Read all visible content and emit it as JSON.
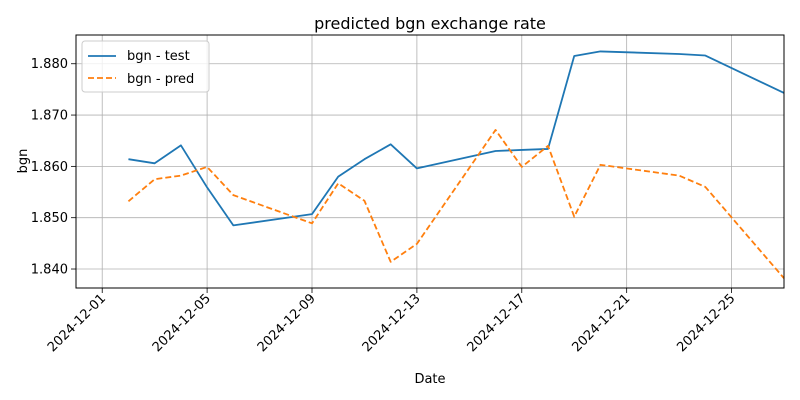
{
  "chart_data": {
    "type": "line",
    "title": "predicted bgn exchange rate",
    "xlabel": "Date",
    "ylabel": "bgn",
    "x_ticks": [
      "2024-12-01",
      "2024-12-05",
      "2024-12-09",
      "2024-12-13",
      "2024-12-17",
      "2024-12-21",
      "2024-12-25"
    ],
    "y_ticks": [
      "1.840",
      "1.850",
      "1.860",
      "1.870",
      "1.880"
    ],
    "xlim": [
      "2024-11-30",
      "2024-12-27"
    ],
    "ylim": [
      1.8363,
      1.8856
    ],
    "grid": true,
    "legend_position": "top-left",
    "series": [
      {
        "name": "bgn - test",
        "color": "#1f77b4",
        "style": "solid",
        "x": [
          "2024-12-02",
          "2024-12-03",
          "2024-12-04",
          "2024-12-05",
          "2024-12-06",
          "2024-12-09",
          "2024-12-10",
          "2024-12-11",
          "2024-12-12",
          "2024-12-13",
          "2024-12-16",
          "2024-12-17",
          "2024-12-18",
          "2024-12-19",
          "2024-12-20",
          "2024-12-23",
          "2024-12-24",
          "2024-12-27"
        ],
        "values": [
          1.8614,
          1.8606,
          1.8641,
          1.8559,
          1.8485,
          1.8507,
          1.858,
          1.8614,
          1.8643,
          1.8596,
          1.863,
          1.8632,
          1.8634,
          1.8815,
          1.8824,
          1.8819,
          1.8816,
          1.8743
        ]
      },
      {
        "name": "bgn - pred",
        "color": "#ff7f0e",
        "style": "dashed",
        "x": [
          "2024-12-02",
          "2024-12-03",
          "2024-12-04",
          "2024-12-05",
          "2024-12-06",
          "2024-12-09",
          "2024-12-10",
          "2024-12-11",
          "2024-12-12",
          "2024-12-13",
          "2024-12-16",
          "2024-12-17",
          "2024-12-18",
          "2024-12-19",
          "2024-12-20",
          "2024-12-23",
          "2024-12-24",
          "2024-12-27"
        ],
        "values": [
          1.8532,
          1.8575,
          1.8582,
          1.8599,
          1.8544,
          1.8489,
          1.8567,
          1.8533,
          1.8414,
          1.8449,
          1.8671,
          1.8599,
          1.864,
          1.8502,
          1.8603,
          1.8582,
          1.856,
          1.8382
        ]
      }
    ]
  }
}
